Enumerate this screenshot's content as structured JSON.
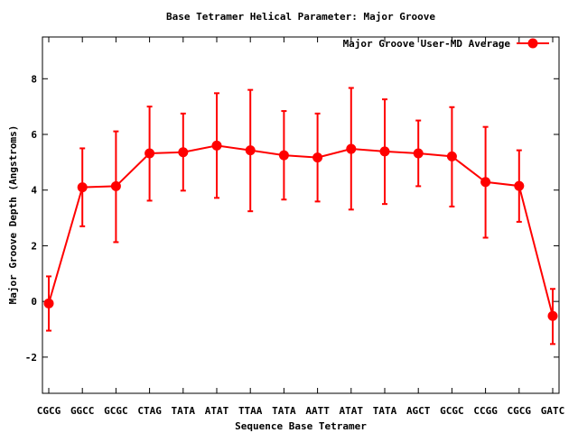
{
  "chart_data": {
    "type": "line",
    "title": "Base Tetramer Helical Parameter: Major Groove",
    "xlabel": "Sequence Base Tetramer",
    "ylabel": "Major Groove Depth (Angstroms)",
    "ylim": [
      -3.3,
      9.5
    ],
    "yticks": [
      -2,
      0,
      2,
      4,
      6,
      8
    ],
    "grid": false,
    "legend_position": "top-right",
    "categories": [
      "CGCG",
      "GGCC",
      "GCGC",
      "CTAG",
      "TATA",
      "ATAT",
      "TTAA",
      "TATA",
      "AATT",
      "ATAT",
      "TATA",
      "AGCT",
      "GCGC",
      "CCGG",
      "CGCG",
      "GATC"
    ],
    "series": [
      {
        "name": "Major Groove User-MD Average",
        "color": "#ff0000",
        "values": [
          -0.07,
          4.1,
          4.14,
          5.32,
          5.36,
          5.6,
          5.43,
          5.25,
          5.17,
          5.48,
          5.39,
          5.32,
          5.21,
          4.29,
          4.15,
          -0.52
        ],
        "error_low": [
          -1.05,
          2.7,
          2.13,
          3.62,
          3.98,
          3.72,
          3.24,
          3.66,
          3.59,
          3.3,
          3.5,
          4.14,
          3.41,
          2.29,
          2.86,
          -1.53
        ],
        "error_high": [
          0.9,
          5.5,
          6.11,
          7.0,
          6.75,
          7.48,
          7.6,
          6.84,
          6.75,
          7.67,
          7.26,
          6.5,
          6.98,
          6.27,
          5.43,
          0.45
        ]
      }
    ]
  }
}
